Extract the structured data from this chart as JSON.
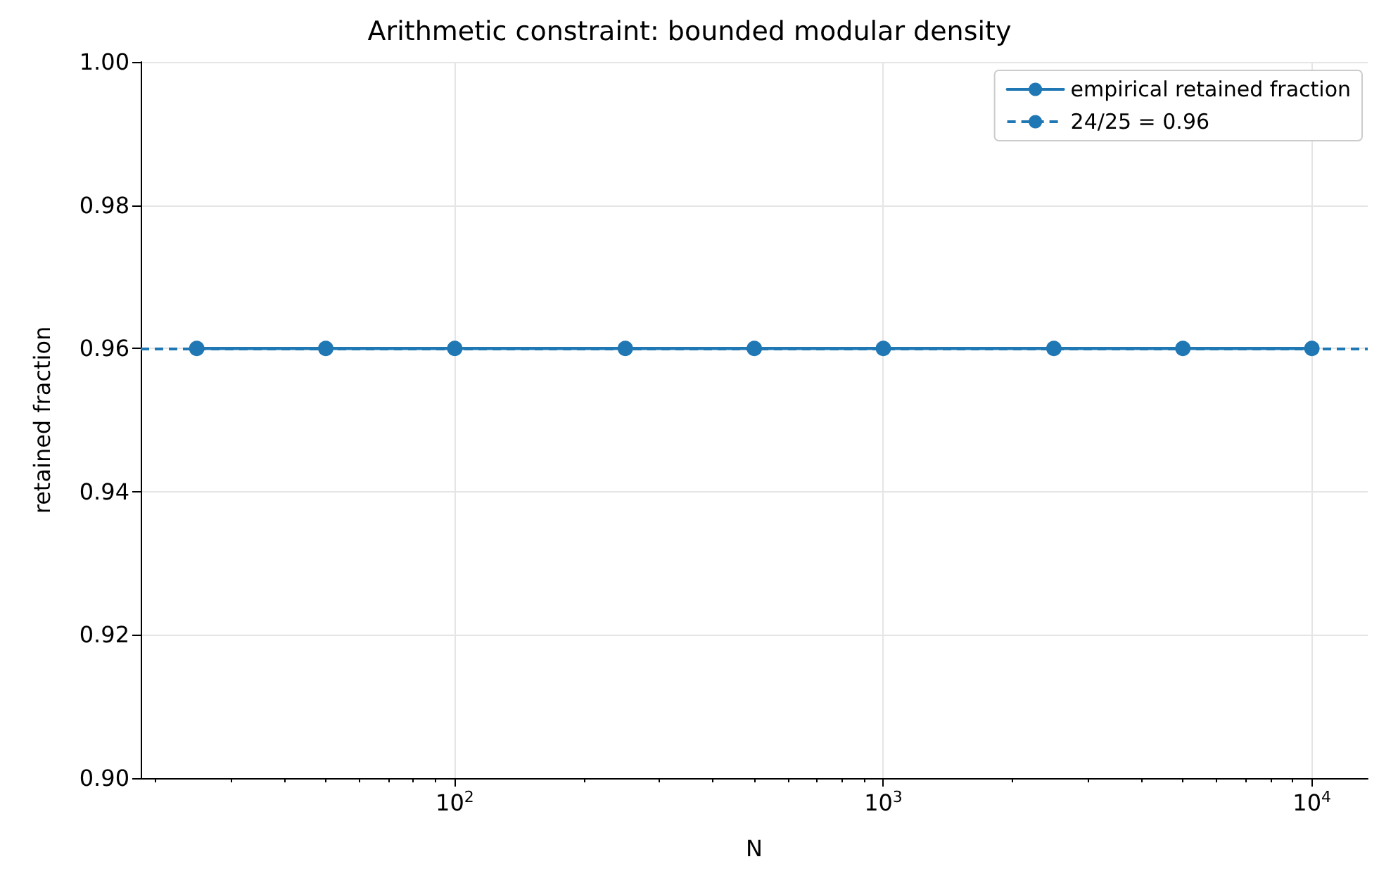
{
  "chart_data": {
    "type": "line",
    "title": "Arithmetic constraint: bounded modular density",
    "xlabel": "N",
    "ylabel": "retained fraction",
    "x": [
      25,
      50,
      100,
      250,
      500,
      1000,
      2500,
      5000,
      10000
    ],
    "series": [
      {
        "name": "empirical retained fraction",
        "color": "#1f77b4",
        "values": [
          0.96,
          0.96,
          0.96,
          0.96,
          0.96,
          0.96,
          0.96,
          0.96,
          0.96
        ]
      }
    ],
    "ref_lines": [
      {
        "axis": "y",
        "value": 0.96,
        "label": "24/25 = 0.96",
        "color": "#1f77b4",
        "line_style": "dashed"
      }
    ],
    "log": "x",
    "xlim": [
      18.5,
      13500
    ],
    "xticks": [
      {
        "value": 100,
        "label": "10$^{2}$"
      },
      {
        "value": 1000,
        "label": "10$^{3}$"
      },
      {
        "value": 10000,
        "label": "10$^{4}$"
      },
      {
        "value": 20,
        "label": null
      },
      {
        "value": 30,
        "label": null
      },
      {
        "value": 40,
        "label": null
      },
      {
        "value": 50,
        "label": null
      },
      {
        "value": 60,
        "label": null
      },
      {
        "value": 70,
        "label": null
      },
      {
        "value": 80,
        "label": null
      },
      {
        "value": 90,
        "label": null
      },
      {
        "value": 200,
        "label": null
      },
      {
        "value": 300,
        "label": null
      },
      {
        "value": 400,
        "label": null
      },
      {
        "value": 500,
        "label": null
      },
      {
        "value": 600,
        "label": null
      },
      {
        "value": 700,
        "label": null
      },
      {
        "value": 800,
        "label": null
      },
      {
        "value": 900,
        "label": null
      },
      {
        "value": 2000,
        "label": null
      },
      {
        "value": 3000,
        "label": null
      },
      {
        "value": 4000,
        "label": null
      },
      {
        "value": 5000,
        "label": null
      },
      {
        "value": 6000,
        "label": null
      },
      {
        "value": 7000,
        "label": null
      },
      {
        "value": 8000,
        "label": null
      },
      {
        "value": 9000,
        "label": null
      }
    ],
    "ylim": [
      0.9,
      1.0
    ],
    "yticks": [
      {
        "value": 0.9,
        "label": "0.90"
      },
      0.92,
      0.94,
      0.96,
      0.98,
      {
        "value": 1.0,
        "label": "1.00"
      }
    ],
    "grid": true,
    "legend": "top right",
    "marker": "circle",
    "line_style": "solid"
  }
}
